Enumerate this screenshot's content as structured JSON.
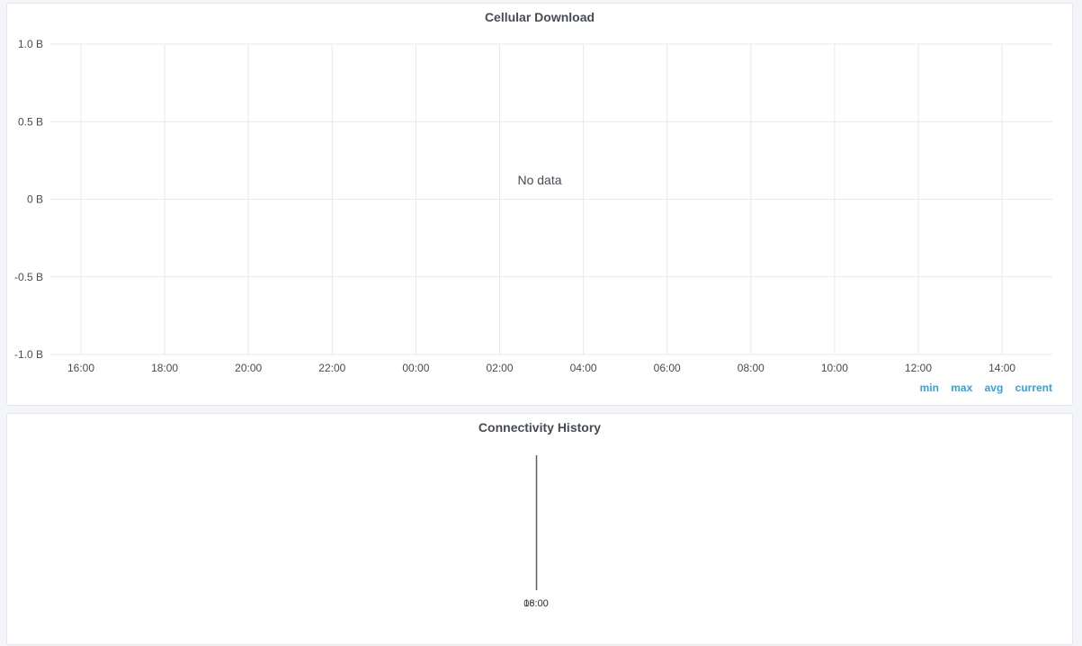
{
  "panels": {
    "download": {
      "title": "Cellular Download",
      "no_data": "No data",
      "legend": [
        "min",
        "max",
        "avg",
        "current"
      ]
    },
    "connectivity": {
      "title": "Connectivity History",
      "time_labels": [
        "08:00",
        "16:00"
      ]
    }
  },
  "chart_data": {
    "type": "line",
    "title": "Cellular Download",
    "y_ticks": [
      "1.0 B",
      "0.5 B",
      "0 B",
      "-0.5 B",
      "-1.0 B"
    ],
    "x_ticks": [
      "16:00",
      "18:00",
      "20:00",
      "22:00",
      "00:00",
      "02:00",
      "04:00",
      "06:00",
      "08:00",
      "10:00",
      "12:00",
      "14:00"
    ],
    "ylim": [
      -1.0,
      1.0
    ],
    "series": [],
    "grid": true,
    "legend_position": "bottom-right"
  },
  "colors": {
    "legend": "#33a2e5",
    "grid": "#e9e9ed",
    "text": "#464c54"
  }
}
